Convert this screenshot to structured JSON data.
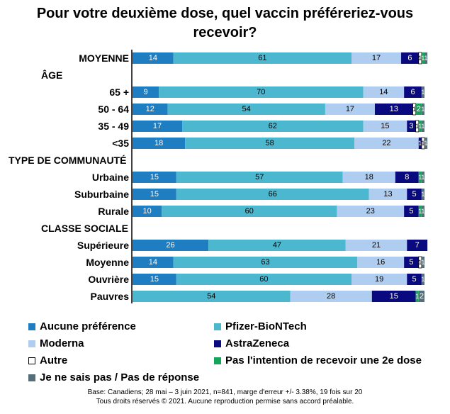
{
  "title_lines": [
    "Pour votre deuxième dose, quel vaccin préféreriez-vous",
    "recevoir?"
  ],
  "chart_data": {
    "type": "bar",
    "orientation": "horizontal",
    "stacked": true,
    "title": "Pour votre deuxième dose, quel vaccin préféreriez-vous recevoir?",
    "xlim": [
      0,
      100
    ],
    "unit": "%",
    "rows": [
      {
        "label": "MOYENNE",
        "kind": "data"
      },
      {
        "label": "ÂGE",
        "kind": "header"
      },
      {
        "label": "65 +",
        "kind": "data"
      },
      {
        "label": "50 - 64",
        "kind": "data"
      },
      {
        "label": "35 - 49",
        "kind": "data"
      },
      {
        "label": "<35",
        "kind": "data"
      },
      {
        "label": "TYPE DE COMMUNAUTÉ",
        "kind": "header"
      },
      {
        "label": "Urbaine",
        "kind": "data"
      },
      {
        "label": "Suburbaine",
        "kind": "data"
      },
      {
        "label": "Rurale",
        "kind": "data"
      },
      {
        "label": "CLASSE SOCIALE",
        "kind": "header"
      },
      {
        "label": "Supérieure",
        "kind": "data"
      },
      {
        "label": "Moyenne",
        "kind": "data"
      },
      {
        "label": "Ouvrière",
        "kind": "data"
      },
      {
        "label": "Pauvres",
        "kind": "data"
      }
    ],
    "series": [
      {
        "name": "Aucune préférence",
        "color": "#1f7dc1",
        "values": [
          14,
          null,
          9,
          12,
          17,
          18,
          null,
          15,
          15,
          10,
          null,
          26,
          14,
          15,
          0
        ]
      },
      {
        "name": "Pfizer-BioNTech",
        "color": "#4bb8cf",
        "values": [
          61,
          null,
          70,
          54,
          62,
          58,
          null,
          57,
          66,
          60,
          null,
          47,
          63,
          60,
          54
        ]
      },
      {
        "name": "Moderna",
        "color": "#aecdf0",
        "values": [
          17,
          null,
          14,
          17,
          15,
          22,
          null,
          18,
          13,
          23,
          null,
          21,
          16,
          19,
          28
        ]
      },
      {
        "name": "AstraZeneca",
        "color": "#0a0a80",
        "values": [
          6,
          null,
          6,
          13,
          3,
          1,
          null,
          8,
          5,
          5,
          null,
          7,
          5,
          5,
          15
        ]
      },
      {
        "name": "Autre",
        "color": "#ffffff",
        "values": [
          1,
          null,
          0,
          1,
          1,
          1,
          null,
          0,
          0,
          0,
          null,
          0,
          1,
          0,
          0
        ]
      },
      {
        "name": "Pas l'intention de recevoir une 2e dose",
        "color": "#16a35a",
        "values": [
          1,
          null,
          0,
          2,
          1,
          0,
          null,
          1,
          0,
          1,
          null,
          0,
          0,
          0,
          1
        ]
      },
      {
        "name": "Je ne sais pas / Pas de réponse",
        "color": "#546e7a",
        "values": [
          1,
          null,
          1,
          1,
          1,
          1,
          null,
          1,
          1,
          1,
          null,
          0,
          1,
          1,
          2
        ]
      }
    ]
  },
  "legend_items": [
    "Aucune préférence",
    "Pfizer-BioNTech",
    "Moderna",
    "AstraZeneca",
    "Autre",
    "Pas l'intention de recevoir une 2e dose",
    "Je ne sais pas / Pas de réponse"
  ],
  "footnote_lines": [
    "Base: Canadiens; 28 mai – 3 juin 2021, n=841, marge d'erreur +/- 3.38%, 19 fois sur 20",
    "Tous droits réservés © 2021. Aucune reproduction permise sans accord préalable."
  ]
}
